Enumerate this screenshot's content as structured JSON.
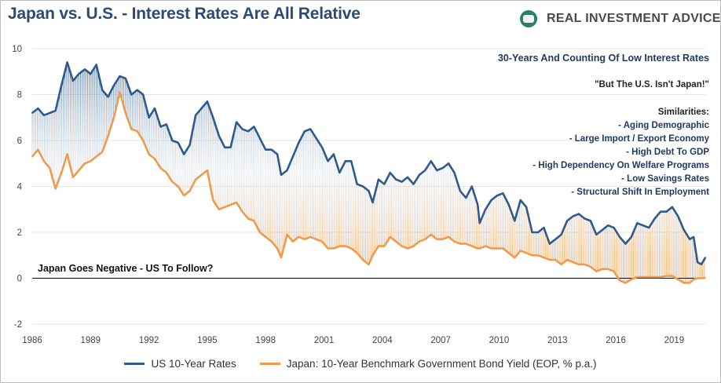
{
  "header": {
    "title": "Japan vs. U.S. - Interest Rates Are All Relative",
    "logo_text": "REAL INVESTMENT ADVICE"
  },
  "annotations": {
    "headline": "30-Years And Counting Of Low Interest Rates",
    "quote": "\"But The U.S. Isn't Japan!\"",
    "similarities_title": "Similarities:",
    "similarities": [
      "- Aging Demographic",
      "- Large Import /  Export Economy",
      "- High Debt To GDP",
      "- High Dependency On Welfare Programs",
      "- Low Savings Rates",
      "- Structural Shift In Employment"
    ],
    "negative_note": "Japan Goes Negative - US To Follow?"
  },
  "colors": {
    "us": "#2e5a8e",
    "japan": "#f19a4d"
  },
  "chart_data": {
    "type": "line",
    "title": "Japan vs. U.S. - Interest Rates Are All Relative",
    "xlabel": "",
    "ylabel": "",
    "xlim": [
      1986.0,
      2020.6
    ],
    "ylim": [
      -2,
      10
    ],
    "yticks": [
      -2,
      0,
      2,
      4,
      6,
      8,
      10
    ],
    "xticks": [
      1986,
      1989,
      1992,
      1995,
      1998,
      2001,
      2004,
      2007,
      2010,
      2013,
      2016,
      2019
    ],
    "grid": "horizontal",
    "legend_position": "bottom",
    "series": [
      {
        "name": "US 10-Year Rates",
        "color": "#2e5a8e",
        "x": [
          1986.0,
          1986.3,
          1986.6,
          1986.9,
          1987.2,
          1987.5,
          1987.8,
          1988.1,
          1988.4,
          1988.7,
          1989.0,
          1989.3,
          1989.6,
          1989.9,
          1990.2,
          1990.5,
          1990.8,
          1991.1,
          1991.4,
          1991.7,
          1992.0,
          1992.3,
          1992.6,
          1992.9,
          1993.2,
          1993.5,
          1993.8,
          1994.1,
          1994.4,
          1994.7,
          1995.0,
          1995.3,
          1995.6,
          1995.9,
          1996.2,
          1996.5,
          1996.8,
          1997.1,
          1997.4,
          1997.7,
          1998.0,
          1998.3,
          1998.6,
          1998.8,
          1999.1,
          1999.4,
          1999.7,
          2000.0,
          2000.3,
          2000.6,
          2000.9,
          2001.2,
          2001.5,
          2001.8,
          2002.1,
          2002.4,
          2002.7,
          2003.0,
          2003.3,
          2003.5,
          2003.8,
          2004.1,
          2004.4,
          2004.7,
          2005.0,
          2005.3,
          2005.6,
          2005.9,
          2006.2,
          2006.5,
          2006.8,
          2007.1,
          2007.4,
          2007.7,
          2008.0,
          2008.3,
          2008.6,
          2008.9,
          2009.0,
          2009.3,
          2009.6,
          2009.9,
          2010.2,
          2010.5,
          2010.8,
          2011.1,
          2011.4,
          2011.7,
          2012.0,
          2012.3,
          2012.6,
          2012.9,
          2013.2,
          2013.5,
          2013.8,
          2014.1,
          2014.4,
          2014.7,
          2015.0,
          2015.3,
          2015.6,
          2015.9,
          2016.2,
          2016.5,
          2016.8,
          2017.1,
          2017.4,
          2017.7,
          2018.0,
          2018.3,
          2018.6,
          2018.9,
          2019.2,
          2019.5,
          2019.8,
          2020.0,
          2020.2,
          2020.4,
          2020.6
        ],
        "values": [
          7.2,
          7.4,
          7.1,
          7.2,
          7.3,
          8.4,
          9.4,
          8.6,
          8.9,
          9.1,
          8.9,
          9.3,
          8.2,
          7.9,
          8.4,
          8.8,
          8.7,
          8.0,
          8.2,
          8.0,
          7.0,
          7.4,
          6.6,
          6.7,
          6.0,
          5.9,
          5.4,
          5.8,
          7.1,
          7.4,
          7.7,
          7.0,
          6.2,
          5.7,
          5.7,
          6.8,
          6.5,
          6.4,
          6.6,
          6.1,
          5.6,
          5.6,
          5.4,
          4.5,
          4.7,
          5.3,
          5.9,
          6.4,
          6.5,
          6.1,
          5.7,
          5.1,
          5.4,
          4.6,
          5.1,
          5.1,
          4.1,
          4.0,
          3.8,
          3.3,
          4.3,
          4.1,
          4.6,
          4.3,
          4.2,
          4.4,
          4.1,
          4.5,
          4.7,
          5.1,
          4.7,
          4.8,
          5.0,
          4.6,
          3.8,
          3.5,
          4.0,
          3.2,
          2.4,
          3.0,
          3.4,
          3.6,
          3.7,
          3.2,
          2.5,
          3.4,
          3.1,
          2.0,
          2.0,
          2.2,
          1.5,
          1.7,
          1.9,
          2.5,
          2.7,
          2.8,
          2.6,
          2.5,
          1.9,
          2.1,
          2.3,
          2.2,
          1.8,
          1.5,
          1.8,
          2.4,
          2.3,
          2.2,
          2.6,
          2.9,
          2.9,
          3.1,
          2.7,
          2.1,
          1.7,
          1.8,
          0.7,
          0.6,
          0.9
        ]
      },
      {
        "name": "Japan: 10-Year Benchmark Government Bond Yield (EOP, % p.a.)",
        "color": "#f19a4d",
        "x": [
          1986.0,
          1986.3,
          1986.6,
          1986.9,
          1987.2,
          1987.5,
          1987.8,
          1988.1,
          1988.4,
          1988.7,
          1989.0,
          1989.3,
          1989.6,
          1989.9,
          1990.2,
          1990.5,
          1990.8,
          1991.1,
          1991.4,
          1991.7,
          1992.0,
          1992.3,
          1992.6,
          1992.9,
          1993.2,
          1993.5,
          1993.8,
          1994.1,
          1994.4,
          1994.7,
          1995.0,
          1995.3,
          1995.6,
          1995.9,
          1996.2,
          1996.5,
          1996.8,
          1997.1,
          1997.4,
          1997.7,
          1998.0,
          1998.3,
          1998.6,
          1998.8,
          1999.1,
          1999.4,
          1999.7,
          2000.0,
          2000.3,
          2000.6,
          2000.9,
          2001.2,
          2001.5,
          2001.8,
          2002.1,
          2002.4,
          2002.7,
          2003.0,
          2003.3,
          2003.5,
          2003.8,
          2004.1,
          2004.4,
          2004.7,
          2005.0,
          2005.3,
          2005.6,
          2005.9,
          2006.2,
          2006.5,
          2006.8,
          2007.1,
          2007.4,
          2007.7,
          2008.0,
          2008.3,
          2008.6,
          2008.9,
          2009.0,
          2009.3,
          2009.6,
          2009.9,
          2010.2,
          2010.5,
          2010.8,
          2011.1,
          2011.4,
          2011.7,
          2012.0,
          2012.3,
          2012.6,
          2012.9,
          2013.2,
          2013.5,
          2013.8,
          2014.1,
          2014.4,
          2014.7,
          2015.0,
          2015.3,
          2015.6,
          2015.9,
          2016.2,
          2016.5,
          2016.8,
          2017.1,
          2017.4,
          2017.7,
          2018.0,
          2018.3,
          2018.6,
          2018.9,
          2019.2,
          2019.5,
          2019.8,
          2020.0,
          2020.2,
          2020.4,
          2020.6
        ],
        "values": [
          5.3,
          5.6,
          5.1,
          4.8,
          3.9,
          4.6,
          5.4,
          4.4,
          4.7,
          5.0,
          5.1,
          5.3,
          5.5,
          6.2,
          7.0,
          8.1,
          7.2,
          6.5,
          6.4,
          6.0,
          5.4,
          5.2,
          4.8,
          4.6,
          4.2,
          4.0,
          3.6,
          3.8,
          4.3,
          4.5,
          4.7,
          3.4,
          3.0,
          3.1,
          3.2,
          3.3,
          2.9,
          2.6,
          2.5,
          2.0,
          1.8,
          1.6,
          1.3,
          0.9,
          1.9,
          1.6,
          1.8,
          1.7,
          1.8,
          1.7,
          1.6,
          1.3,
          1.3,
          1.4,
          1.4,
          1.3,
          1.1,
          0.8,
          0.6,
          1.0,
          1.4,
          1.4,
          1.8,
          1.6,
          1.4,
          1.3,
          1.4,
          1.6,
          1.7,
          1.9,
          1.7,
          1.7,
          1.8,
          1.6,
          1.5,
          1.5,
          1.4,
          1.3,
          1.3,
          1.4,
          1.3,
          1.3,
          1.3,
          1.1,
          0.9,
          1.2,
          1.1,
          1.0,
          1.0,
          0.9,
          0.8,
          0.8,
          0.6,
          0.8,
          0.7,
          0.6,
          0.6,
          0.5,
          0.3,
          0.4,
          0.4,
          0.3,
          -0.1,
          -0.2,
          -0.05,
          0.05,
          0.05,
          0.05,
          0.05,
          0.05,
          0.1,
          0.1,
          -0.05,
          -0.2,
          -0.2,
          -0.05,
          0.0,
          0.0,
          0.02
        ]
      }
    ]
  }
}
